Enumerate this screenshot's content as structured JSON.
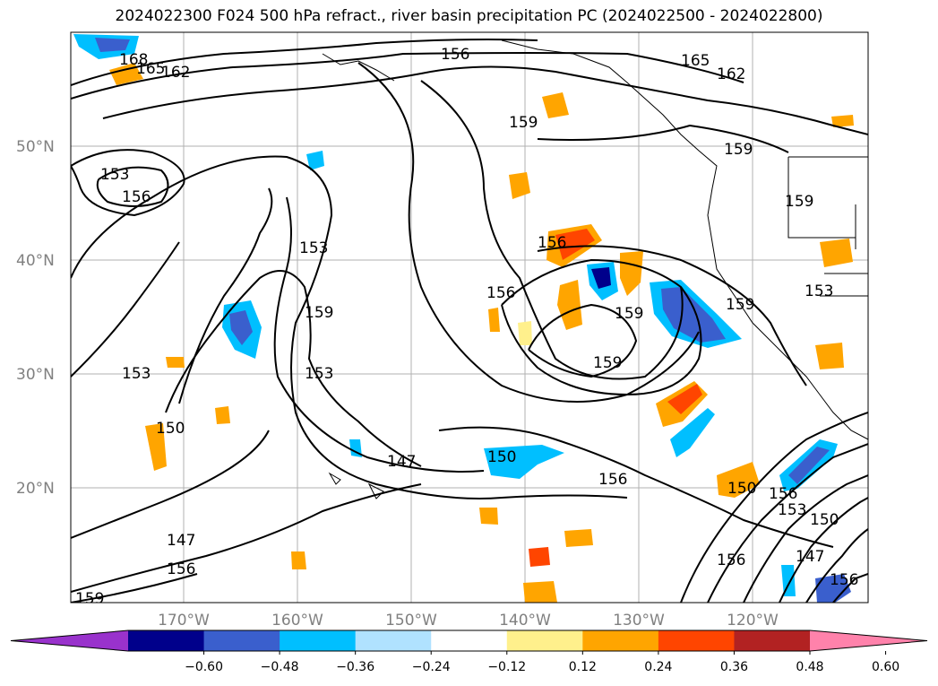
{
  "title": "2024022300 F024 500 hPa refract., river basin precipitation PC (2024022500 - 2024022800)",
  "lat_labels": [
    "50°N",
    "40°N",
    "30°N",
    "20°N"
  ],
  "lon_labels": [
    "170°W",
    "160°W",
    "150°W",
    "140°W",
    "130°W",
    "120°W"
  ],
  "colorbar": {
    "ticks": [
      "−0.60",
      "−0.48",
      "−0.36",
      "−0.24",
      "−0.12",
      "0.12",
      "0.24",
      "0.36",
      "0.48",
      "0.60"
    ],
    "colors": [
      "#9932cc",
      "#00008b",
      "#3a5fcd",
      "#00bfff",
      "#b0e2ff",
      "#ffffff",
      "#fff08c",
      "#ffa500",
      "#ff4500",
      "#b22222",
      "#ff82ab"
    ]
  },
  "contour_labels": [
    {
      "text": "168"
    },
    {
      "text": "165"
    },
    {
      "text": "162"
    },
    {
      "text": "156"
    },
    {
      "text": "165"
    },
    {
      "text": "162"
    },
    {
      "text": "159"
    },
    {
      "text": "159"
    },
    {
      "text": "153"
    },
    {
      "text": "156"
    },
    {
      "text": "159"
    },
    {
      "text": "153"
    },
    {
      "text": "159"
    },
    {
      "text": "156"
    },
    {
      "text": "156"
    },
    {
      "text": "159"
    },
    {
      "text": "159"
    },
    {
      "text": "153"
    },
    {
      "text": "159"
    },
    {
      "text": "153"
    },
    {
      "text": "153"
    },
    {
      "text": "150"
    },
    {
      "text": "147"
    },
    {
      "text": "150"
    },
    {
      "text": "156"
    },
    {
      "text": "150"
    },
    {
      "text": "156"
    },
    {
      "text": "153"
    },
    {
      "text": "150"
    },
    {
      "text": "147"
    },
    {
      "text": "156"
    },
    {
      "text": "156"
    },
    {
      "text": "156"
    },
    {
      "text": "159"
    },
    {
      "text": "147"
    }
  ]
}
